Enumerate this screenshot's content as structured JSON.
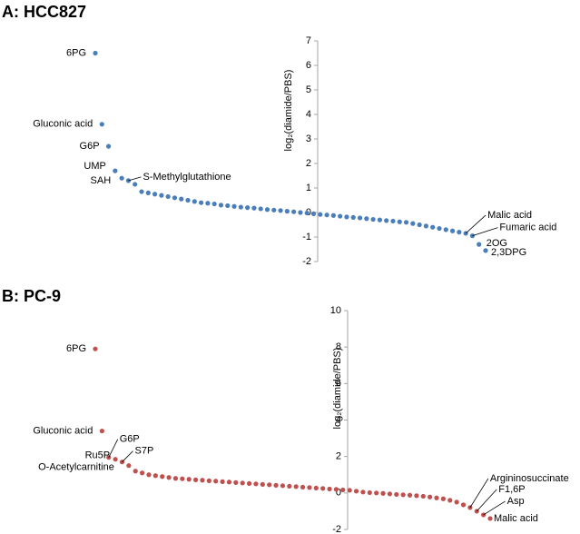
{
  "chart_data": [
    {
      "type": "dot",
      "title": "A: HCC827",
      "y_label": "log₂(diamide/PBS)",
      "color": "#4a7ebb",
      "ylim": [
        -2,
        7
      ],
      "yticks": [
        -2,
        -1,
        0,
        1,
        2,
        3,
        4,
        5,
        6,
        7
      ],
      "categories": [
        null,
        null,
        null,
        null,
        null,
        null,
        null,
        null,
        null,
        null,
        null,
        null,
        null,
        null,
        null,
        null,
        null,
        null,
        null,
        null,
        null,
        null,
        null,
        null,
        null,
        null,
        null,
        null,
        null,
        null,
        null,
        null,
        null,
        null,
        null,
        null,
        null,
        null,
        null,
        null,
        null,
        null,
        null,
        null,
        null,
        null,
        null,
        null,
        null,
        null,
        null,
        null,
        null,
        null,
        null,
        null,
        null,
        null,
        null,
        null
      ],
      "values": [
        6.5,
        3.6,
        2.7,
        1.7,
        1.4,
        1.3,
        1.15,
        0.85,
        0.8,
        0.75,
        0.7,
        0.65,
        0.6,
        0.55,
        0.5,
        0.45,
        0.4,
        0.38,
        0.35,
        0.3,
        0.28,
        0.25,
        0.22,
        0.2,
        0.18,
        0.15,
        0.12,
        0.1,
        0.08,
        0.05,
        0.03,
        0,
        -0.02,
        -0.05,
        -0.08,
        -0.1,
        -0.12,
        -0.15,
        -0.18,
        -0.2,
        -0.22,
        -0.25,
        -0.28,
        -0.3,
        -0.33,
        -0.35,
        -0.38,
        -0.4,
        -0.45,
        -0.5,
        -0.55,
        -0.6,
        -0.65,
        -0.7,
        -0.75,
        -0.8,
        -0.85,
        -0.95,
        -1.3,
        -1.55
      ],
      "point_labels": [
        "6PG",
        "Gluconic acid",
        "G6P",
        "UMP",
        "SAH",
        "S-Methylglutathione",
        null,
        null,
        null,
        null,
        null,
        null,
        null,
        null,
        null,
        null,
        null,
        null,
        null,
        null,
        null,
        null,
        null,
        null,
        null,
        null,
        null,
        null,
        null,
        null,
        null,
        null,
        null,
        null,
        null,
        null,
        null,
        null,
        null,
        null,
        null,
        null,
        null,
        null,
        null,
        null,
        null,
        null,
        null,
        null,
        null,
        null,
        null,
        null,
        null,
        null,
        "Malic acid",
        "Fumaric acid",
        "2OG",
        "2,3DPG"
      ]
    },
    {
      "type": "dot",
      "title": "B: PC-9",
      "y_label": "log₂(diamide/PBS)",
      "color": "#c0504d",
      "ylim": [
        -2,
        10
      ],
      "yticks": [
        -2,
        0,
        2,
        4,
        6,
        8,
        10
      ],
      "categories": [
        null,
        null,
        null,
        null,
        null,
        null,
        null,
        null,
        null,
        null,
        null,
        null,
        null,
        null,
        null,
        null,
        null,
        null,
        null,
        null,
        null,
        null,
        null,
        null,
        null,
        null,
        null,
        null,
        null,
        null,
        null,
        null,
        null,
        null,
        null,
        null,
        null,
        null,
        null,
        null,
        null,
        null,
        null,
        null,
        null,
        null,
        null,
        null,
        null,
        null,
        null,
        null,
        null,
        null,
        null,
        null,
        null,
        null,
        null,
        null
      ],
      "values": [
        7.9,
        3.4,
        1.95,
        1.85,
        1.7,
        1.5,
        1.2,
        1.1,
        1.0,
        0.95,
        0.9,
        0.85,
        0.8,
        0.78,
        0.75,
        0.72,
        0.7,
        0.67,
        0.65,
        0.62,
        0.6,
        0.57,
        0.55,
        0.52,
        0.5,
        0.47,
        0.45,
        0.42,
        0.4,
        0.37,
        0.35,
        0.32,
        0.3,
        0.27,
        0.25,
        0.22,
        0.2,
        0.17,
        0.15,
        0.1,
        0.05,
        0.02,
        0,
        -0.02,
        -0.05,
        -0.08,
        -0.1,
        -0.12,
        -0.15,
        -0.18,
        -0.22,
        -0.27,
        -0.32,
        -0.4,
        -0.5,
        -0.65,
        -0.8,
        -1.0,
        -1.2,
        -1.4
      ],
      "point_labels": [
        "6PG",
        "Gluconic acid",
        "G6P",
        "Ru5P",
        "S7P",
        "O-Acetylcarnitine",
        null,
        null,
        null,
        null,
        null,
        null,
        null,
        null,
        null,
        null,
        null,
        null,
        null,
        null,
        null,
        null,
        null,
        null,
        null,
        null,
        null,
        null,
        null,
        null,
        null,
        null,
        null,
        null,
        null,
        null,
        null,
        null,
        null,
        null,
        null,
        null,
        null,
        null,
        null,
        null,
        null,
        null,
        null,
        null,
        null,
        null,
        null,
        null,
        null,
        null,
        "Argininosuccinate",
        "F1,6P",
        "Asp",
        "Malic acid"
      ]
    }
  ]
}
